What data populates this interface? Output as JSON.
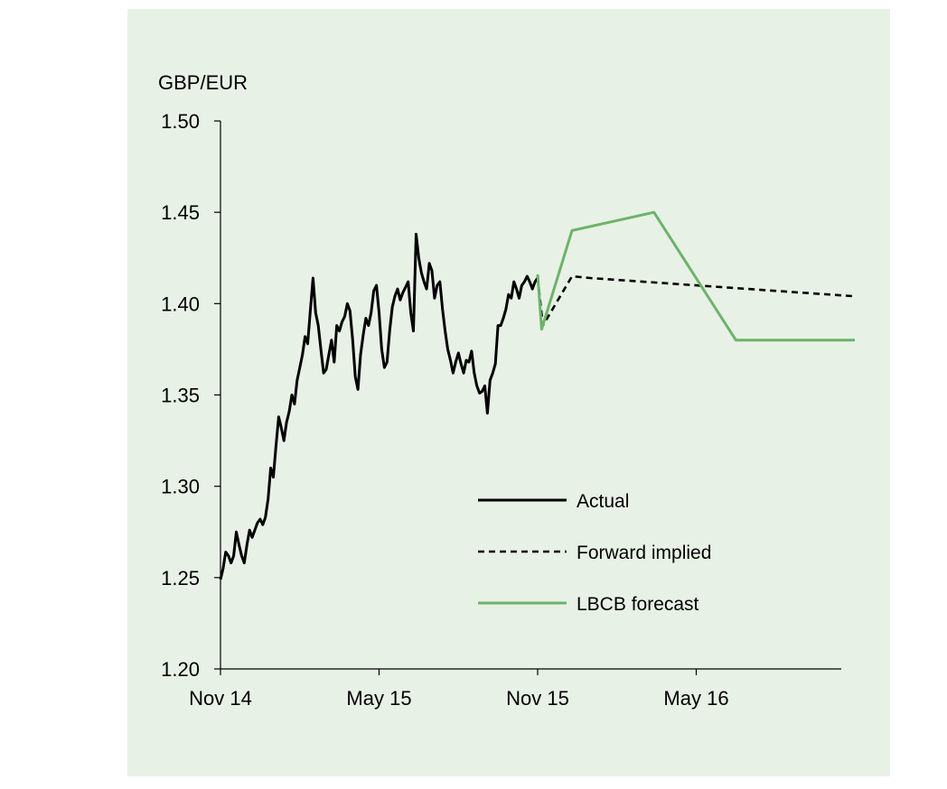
{
  "chart_data": {
    "type": "line",
    "ylabel": "GBP/EUR",
    "ylim": [
      1.2,
      1.5
    ],
    "yticks": [
      "1.50",
      "1.45",
      "1.40",
      "1.35",
      "1.30",
      "1.25",
      "1.20"
    ],
    "ytick_values": [
      1.5,
      1.45,
      1.4,
      1.35,
      1.3,
      1.25,
      1.2
    ],
    "xlim": [
      0,
      24.3
    ],
    "xticks": [
      "Nov 14",
      "May 15",
      "Nov 15",
      "May 16"
    ],
    "xtick_values": [
      0,
      6,
      12,
      18
    ],
    "legend": [
      "Actual",
      "Forward implied",
      "LBCB forecast"
    ],
    "series": [
      {
        "name": "Actual",
        "color": "#000000",
        "style": "solid",
        "x": [
          0,
          0.1,
          0.2,
          0.3,
          0.4,
          0.5,
          0.6,
          0.7,
          0.8,
          0.9,
          1.0,
          1.1,
          1.2,
          1.3,
          1.4,
          1.5,
          1.6,
          1.7,
          1.8,
          1.9,
          2.0,
          2.1,
          2.2,
          2.3,
          2.4,
          2.5,
          2.6,
          2.7,
          2.8,
          2.9,
          3.0,
          3.1,
          3.2,
          3.3,
          3.4,
          3.5,
          3.6,
          3.7,
          3.8,
          3.9,
          4.0,
          4.1,
          4.2,
          4.3,
          4.4,
          4.5,
          4.6,
          4.7,
          4.8,
          4.9,
          5.0,
          5.1,
          5.2,
          5.3,
          5.4,
          5.5,
          5.6,
          5.7,
          5.8,
          5.9,
          6.0,
          6.1,
          6.2,
          6.3,
          6.4,
          6.5,
          6.6,
          6.7,
          6.8,
          6.9,
          7.0,
          7.1,
          7.2,
          7.3,
          7.4,
          7.5,
          7.6,
          7.7,
          7.8,
          7.9,
          8.0,
          8.1,
          8.2,
          8.3,
          8.4,
          8.5,
          8.6,
          8.7,
          8.8,
          8.9,
          9.0,
          9.1,
          9.2,
          9.3,
          9.4,
          9.5,
          9.6,
          9.7,
          9.8,
          9.9,
          10.0,
          10.1,
          10.2,
          10.3,
          10.4,
          10.5,
          10.6,
          10.7,
          10.8,
          10.9,
          11.0,
          11.1,
          11.2,
          11.3,
          11.4,
          11.5,
          11.6,
          11.7,
          11.8,
          11.9,
          12.0
        ],
        "values": [
          1.249,
          1.255,
          1.264,
          1.262,
          1.258,
          1.262,
          1.275,
          1.268,
          1.262,
          1.258,
          1.268,
          1.276,
          1.272,
          1.276,
          1.28,
          1.282,
          1.279,
          1.283,
          1.293,
          1.31,
          1.305,
          1.322,
          1.338,
          1.332,
          1.325,
          1.335,
          1.341,
          1.35,
          1.345,
          1.358,
          1.365,
          1.372,
          1.382,
          1.378,
          1.396,
          1.414,
          1.395,
          1.388,
          1.375,
          1.362,
          1.364,
          1.372,
          1.38,
          1.368,
          1.388,
          1.385,
          1.39,
          1.393,
          1.4,
          1.396,
          1.38,
          1.36,
          1.353,
          1.372,
          1.383,
          1.392,
          1.388,
          1.395,
          1.407,
          1.41,
          1.395,
          1.375,
          1.365,
          1.368,
          1.385,
          1.398,
          1.404,
          1.408,
          1.402,
          1.406,
          1.409,
          1.412,
          1.395,
          1.385,
          1.438,
          1.425,
          1.417,
          1.412,
          1.408,
          1.422,
          1.418,
          1.403,
          1.41,
          1.412,
          1.397,
          1.385,
          1.375,
          1.369,
          1.362,
          1.368,
          1.373,
          1.367,
          1.362,
          1.369,
          1.368,
          1.374,
          1.362,
          1.355,
          1.351,
          1.352,
          1.355,
          1.34,
          1.358,
          1.362,
          1.367,
          1.388,
          1.388,
          1.392,
          1.397,
          1.405,
          1.403,
          1.412,
          1.408,
          1.403,
          1.41,
          1.412,
          1.415,
          1.412,
          1.408,
          1.412,
          1.414
        ]
      },
      {
        "name": "Forward implied",
        "color": "#000000",
        "style": "dashed",
        "x": [
          12.0,
          12.2,
          13.3,
          14.0,
          18.0,
          21.0,
          24.0
        ],
        "values": [
          1.414,
          1.388,
          1.415,
          1.414,
          1.41,
          1.407,
          1.404
        ]
      },
      {
        "name": "LBCB forecast",
        "color": "#6db36a",
        "style": "solid",
        "x": [
          12.0,
          12.15,
          13.3,
          16.4,
          19.5,
          24.0
        ],
        "values": [
          1.416,
          1.386,
          1.44,
          1.45,
          1.38,
          1.38
        ]
      }
    ]
  }
}
